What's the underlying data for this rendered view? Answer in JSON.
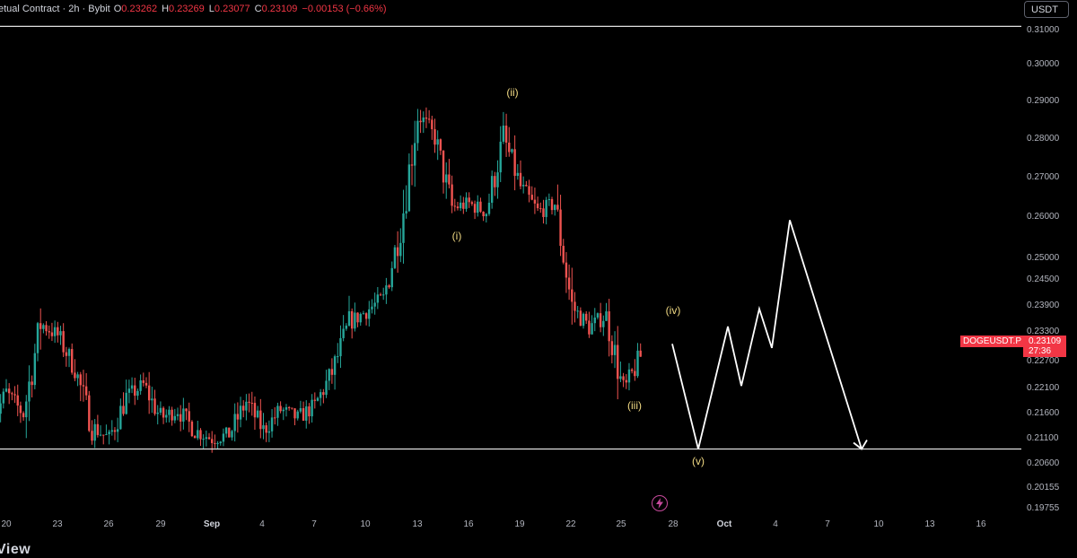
{
  "header": {
    "title": "etual Contract · 2h · Bybit",
    "ohlc": [
      {
        "k": "O",
        "v": "0.23262"
      },
      {
        "k": "H",
        "v": "0.23269"
      },
      {
        "k": "L",
        "v": "0.23077"
      },
      {
        "k": "C",
        "v": "0.23109"
      }
    ],
    "change": "−0.00153 (−0.66%)"
  },
  "currency_label": "USDT",
  "y_axis": {
    "labels": [
      "0.31000",
      "0.30000",
      "0.29000",
      "0.28000",
      "0.27000",
      "0.26000",
      "0.25000",
      "0.24500",
      "0.23900",
      "0.23300",
      "0.22700",
      "0.22100",
      "0.21600",
      "0.21100",
      "0.20600",
      "0.20155",
      "0.19755"
    ]
  },
  "x_axis": {
    "labels": [
      {
        "text": "20",
        "bold": false
      },
      {
        "text": "23",
        "bold": false
      },
      {
        "text": "26",
        "bold": false
      },
      {
        "text": "29",
        "bold": false
      },
      {
        "text": "Sep",
        "bold": true
      },
      {
        "text": "4",
        "bold": false
      },
      {
        "text": "7",
        "bold": false
      },
      {
        "text": "10",
        "bold": false
      },
      {
        "text": "13",
        "bold": false
      },
      {
        "text": "16",
        "bold": false
      },
      {
        "text": "19",
        "bold": false
      },
      {
        "text": "22",
        "bold": false
      },
      {
        "text": "25",
        "bold": false
      },
      {
        "text": "28",
        "bold": false
      },
      {
        "text": "Oct",
        "bold": true
      },
      {
        "text": "4",
        "bold": false
      },
      {
        "text": "7",
        "bold": false
      },
      {
        "text": "10",
        "bold": false
      },
      {
        "text": "13",
        "bold": false
      },
      {
        "text": "16",
        "bold": false
      }
    ]
  },
  "last_price": {
    "symbol": "DOGEUSDT.P",
    "price": "0.23109",
    "countdown": "27:36"
  },
  "wave_labels": [
    "(i)",
    "(ii)",
    "(iii)",
    "(iv)",
    "(v)"
  ],
  "horizontal_levels": {
    "upper": 0.311,
    "lower": 0.2085
  },
  "colors": {
    "up": "#26a69a",
    "down": "#ef5350",
    "accent": "#f23645",
    "wave_label": "#f0d983",
    "projection": "#ffffff"
  },
  "footer_text": "View",
  "chart_data": {
    "type": "candlestick",
    "symbol": "DOGEUSDT.P",
    "interval": "2h",
    "exchange": "Bybit",
    "price_path": [
      {
        "date": "Aug 19",
        "price": 0.214
      },
      {
        "date": "Aug 20",
        "price": 0.222
      },
      {
        "date": "Aug 21",
        "price": 0.217
      },
      {
        "date": "Aug 22",
        "price": 0.239
      },
      {
        "date": "Aug 23",
        "price": 0.236
      },
      {
        "date": "Aug 24",
        "price": 0.228
      },
      {
        "date": "Aug 25",
        "price": 0.214
      },
      {
        "date": "Aug 26",
        "price": 0.211
      },
      {
        "date": "Aug 27",
        "price": 0.221
      },
      {
        "date": "Aug 28",
        "price": 0.224
      },
      {
        "date": "Aug 29",
        "price": 0.216
      },
      {
        "date": "Aug 30",
        "price": 0.218
      },
      {
        "date": "Aug 31",
        "price": 0.213
      },
      {
        "date": "Sep 1",
        "price": 0.211
      },
      {
        "date": "Sep 2",
        "price": 0.212
      },
      {
        "date": "Sep 3",
        "price": 0.22
      },
      {
        "date": "Sep 4",
        "price": 0.213
      },
      {
        "date": "Sep 5",
        "price": 0.218
      },
      {
        "date": "Sep 6",
        "price": 0.216
      },
      {
        "date": "Sep 7",
        "price": 0.219
      },
      {
        "date": "Sep 8",
        "price": 0.227
      },
      {
        "date": "Sep 9",
        "price": 0.239
      },
      {
        "date": "Sep 10",
        "price": 0.242
      },
      {
        "date": "Sep 11",
        "price": 0.245
      },
      {
        "date": "Sep 12",
        "price": 0.262
      },
      {
        "date": "Sep 13",
        "price": 0.29
      },
      {
        "date": "Sep 14",
        "price": 0.284
      },
      {
        "date": "Sep 15",
        "price": 0.267
      },
      {
        "date": "Sep 16",
        "price": 0.268
      },
      {
        "date": "Sep 17",
        "price": 0.266
      },
      {
        "date": "Sep 18",
        "price": 0.284
      },
      {
        "date": "Sep 19",
        "price": 0.272
      },
      {
        "date": "Sep 20",
        "price": 0.266
      },
      {
        "date": "Sep 21",
        "price": 0.268
      },
      {
        "date": "Sep 22",
        "price": 0.243
      },
      {
        "date": "Sep 23",
        "price": 0.238
      },
      {
        "date": "Sep 24",
        "price": 0.241
      },
      {
        "date": "Sep 25",
        "price": 0.222
      },
      {
        "date": "Sep 26",
        "price": 0.231
      }
    ],
    "projection_path": [
      0.234,
      0.2085,
      0.2382,
      0.2238,
      0.2425,
      0.233,
      0.264,
      0.2085
    ],
    "ylim": [
      0.1965,
      0.3125
    ]
  }
}
